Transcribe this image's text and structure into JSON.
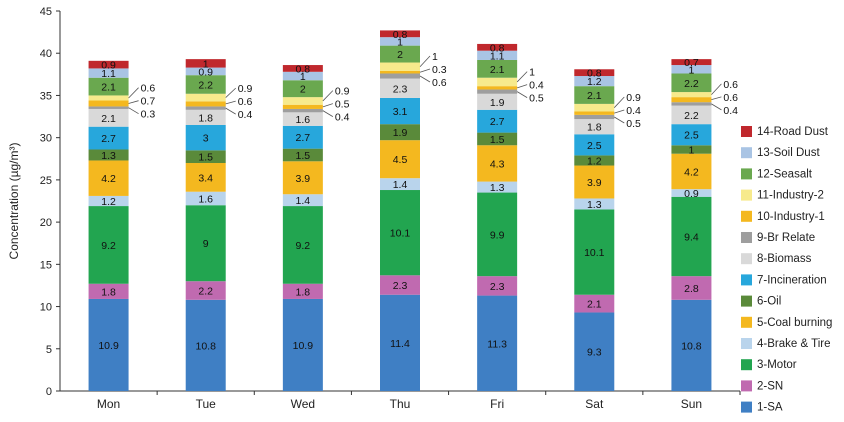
{
  "chart_data": {
    "type": "bar",
    "stacked": true,
    "title": "",
    "xlabel": "",
    "ylabel": "Concentration (µg/m³)",
    "ylim": [
      0,
      45
    ],
    "yticks": [
      "0",
      "5",
      "10",
      "15",
      "20",
      "25",
      "30",
      "35",
      "40",
      "45"
    ],
    "grid": false,
    "legend_position": "right",
    "categories": [
      "Mon",
      "Tue",
      "Wed",
      "Thu",
      "Fri",
      "Sat",
      "Sun"
    ],
    "series": [
      {
        "name": "1-SA",
        "color": "#3f7fc4",
        "values": [
          10.9,
          10.8,
          10.9,
          11.4,
          11.3,
          9.3,
          10.8
        ]
      },
      {
        "name": "2-SN",
        "color": "#c06ab0",
        "values": [
          1.8,
          2.2,
          1.8,
          2.3,
          2.3,
          2.1,
          2.8
        ]
      },
      {
        "name": "3-Motor",
        "color": "#22a550",
        "values": [
          9.2,
          9.0,
          9.2,
          10.1,
          9.9,
          10.1,
          9.4
        ]
      },
      {
        "name": "4-Brake & Tire",
        "color": "#b9d4ec",
        "values": [
          1.2,
          1.6,
          1.4,
          1.4,
          1.3,
          1.3,
          0.9
        ]
      },
      {
        "name": "5-Coal burning",
        "color": "#f4b81f",
        "values": [
          4.2,
          3.4,
          3.9,
          4.5,
          4.3,
          3.9,
          4.2
        ]
      },
      {
        "name": "6-Oil",
        "color": "#5a8a3a",
        "values": [
          1.3,
          1.5,
          1.5,
          1.9,
          1.5,
          1.2,
          1.0
        ]
      },
      {
        "name": "7-Incineration",
        "color": "#27a7dc",
        "values": [
          2.7,
          3.0,
          2.7,
          3.1,
          2.7,
          2.5,
          2.5
        ]
      },
      {
        "name": "8-Biomass",
        "color": "#d9d9d9",
        "values": [
          2.1,
          1.8,
          1.6,
          2.3,
          1.9,
          1.8,
          2.2
        ]
      },
      {
        "name": "9-Br Relate",
        "color": "#9e9e9e",
        "values": [
          0.3,
          0.4,
          0.4,
          0.6,
          0.5,
          0.5,
          0.4
        ]
      },
      {
        "name": "10-Industry-1",
        "color": "#f4b81f",
        "values": [
          0.7,
          0.6,
          0.5,
          0.3,
          0.4,
          0.4,
          0.6
        ]
      },
      {
        "name": "11-Industry-2",
        "color": "#f7ea8c",
        "values": [
          0.6,
          0.9,
          0.9,
          1.0,
          1.0,
          0.9,
          0.6
        ]
      },
      {
        "name": "12-Seasalt",
        "color": "#6aa84f",
        "values": [
          2.1,
          2.2,
          2.0,
          2.0,
          2.1,
          2.1,
          2.2
        ]
      },
      {
        "name": "13-Soil Dust",
        "color": "#a9c4e4",
        "values": [
          1.1,
          0.9,
          1.0,
          1.0,
          1.1,
          1.2,
          1.0
        ]
      },
      {
        "name": "14-Road Dust",
        "color": "#c0282d",
        "values": [
          0.9,
          1.0,
          0.8,
          0.8,
          0.8,
          0.8,
          0.7
        ]
      }
    ]
  }
}
